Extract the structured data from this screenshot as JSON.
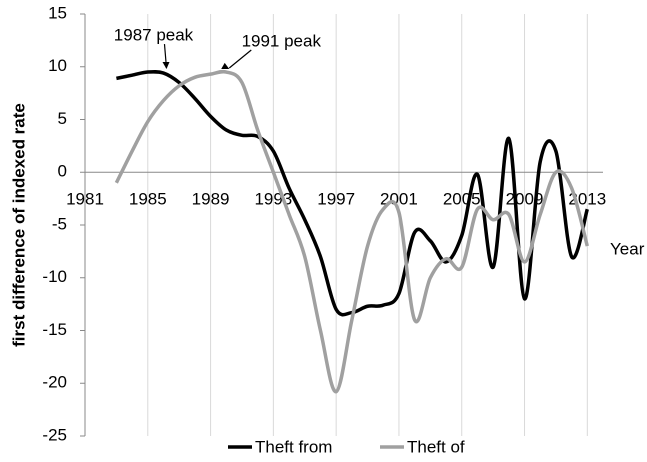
{
  "chart_data": {
    "type": "line",
    "y_label": "first difference of indexed rate",
    "x_label": "Year",
    "x": [
      1983,
      1984,
      1985,
      1986,
      1987,
      1988,
      1989,
      1990,
      1991,
      1992,
      1993,
      1994,
      1995,
      1996,
      1997,
      1998,
      1999,
      2000,
      2001,
      2002,
      2003,
      2004,
      2005,
      2006,
      2007,
      2008,
      2009,
      2010,
      2011,
      2012,
      2013
    ],
    "series": [
      {
        "name": "Theft from",
        "color": "#000000",
        "values": [
          8.9,
          9.2,
          9.5,
          9.4,
          8.5,
          7,
          5.3,
          4,
          3.5,
          3.4,
          2,
          -1.5,
          -4.5,
          -8,
          -13,
          -13.3,
          -12.7,
          -12.6,
          -11.5,
          -5.7,
          -6.5,
          -8.5,
          -6,
          -0.2,
          -9,
          3.2,
          -12,
          1,
          2,
          -8,
          -3.5
        ]
      },
      {
        "name": "Theft of",
        "color": "#a0a0a0",
        "values": [
          -1,
          2,
          4.8,
          6.8,
          8.2,
          9,
          9.3,
          9.5,
          8.5,
          4,
          0,
          -4,
          -8,
          -15,
          -20.8,
          -14,
          -7,
          -3.5,
          -3.8,
          -14,
          -10,
          -8.2,
          -9,
          -3.5,
          -4.5,
          -4,
          -8.5,
          -4,
          0,
          -1.5,
          -7
        ]
      }
    ],
    "annotations": [
      {
        "text": "1987 peak",
        "x": 1986,
        "y": 9.5
      },
      {
        "text": "1991 peak",
        "x": 1990,
        "y": 9.5
      }
    ],
    "xlim": [
      1981,
      2014
    ],
    "xticks": [
      1981,
      1985,
      1989,
      1993,
      1997,
      2001,
      2005,
      2009,
      2013
    ],
    "ylim": [
      -25,
      15
    ],
    "yticks": [
      -25,
      -20,
      -15,
      -10,
      -5,
      0,
      5,
      10,
      15
    ],
    "grid": "x",
    "legend": "bottom"
  }
}
